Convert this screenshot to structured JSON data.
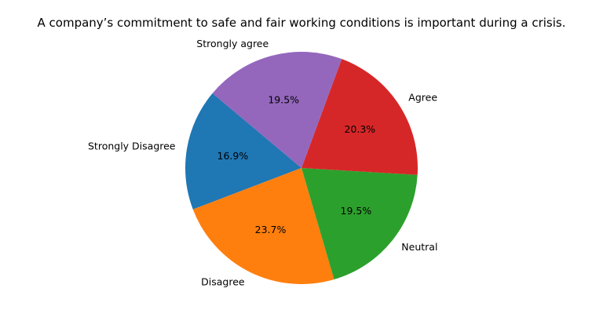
{
  "chart_data": {
    "type": "pie",
    "title": "A company’s commitment to safe and fair working conditions is important during a crisis.",
    "categories": [
      "Strongly Disagree",
      "Disagree",
      "Neutral",
      "Agree",
      "Strongly agree"
    ],
    "values": [
      16.9,
      23.7,
      19.5,
      20.3,
      19.5
    ],
    "value_labels": [
      "16.9%",
      "23.7%",
      "19.5%",
      "20.3%",
      "19.5%"
    ],
    "colors": [
      "#1f77b4",
      "#ff7f0e",
      "#2ca02c",
      "#d62728",
      "#9467bd"
    ],
    "start_angle_deg": 140,
    "direction": "counterclockwise"
  }
}
